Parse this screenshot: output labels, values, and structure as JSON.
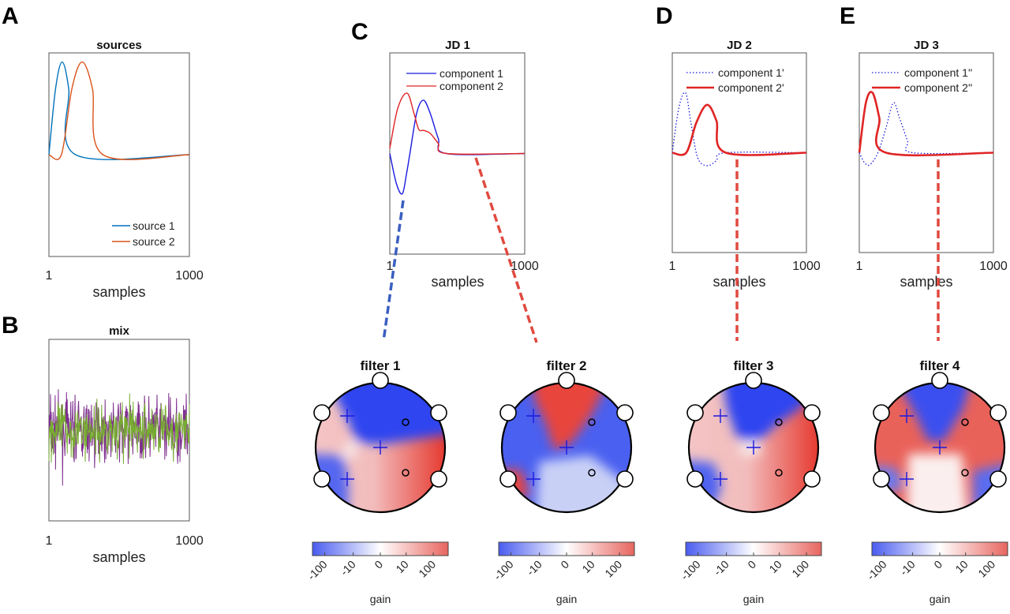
{
  "panel_labels": {
    "a": "A",
    "b": "B",
    "c": "C",
    "d": "D",
    "e": "E"
  },
  "colors": {
    "source1": "#0072BD",
    "source2": "#D95319",
    "mix1": "#7E2F8E",
    "mix2": "#77AC30",
    "comp_blue": "#1a1ae0",
    "comp_red": "#e02525",
    "cmap_neg": "#4a5cf0",
    "cmap_pos": "#e8655f"
  },
  "chart_data": [
    {
      "id": "sources",
      "type": "line",
      "title": "sources",
      "xlabel": "samples",
      "xticks": [
        "1",
        "1000"
      ],
      "xlim": [
        1,
        1000
      ],
      "ylim": [
        -1.1,
        1.1
      ],
      "legend_placement": "bottom-right",
      "series": [
        {
          "name": "source 1",
          "style": "solid",
          "color_key": "source1",
          "points": [
            [
              1,
              0
            ],
            [
              48,
              0.71
            ],
            [
              95,
              1
            ],
            [
              142,
              0.71
            ],
            [
              190,
              0
            ],
            [
              1000,
              0
            ]
          ]
        },
        {
          "name": "source 2",
          "style": "solid",
          "color_key": "source2",
          "points": [
            [
              1,
              0
            ],
            [
              90,
              0
            ],
            [
              164,
              0.71
            ],
            [
              237,
              1
            ],
            [
              311,
              0.71
            ],
            [
              385,
              0
            ],
            [
              1000,
              0
            ]
          ]
        }
      ]
    },
    {
      "id": "mix",
      "type": "line",
      "title": "mix",
      "xlabel": "samples",
      "xticks": [
        "1",
        "1000"
      ],
      "xlim": [
        1,
        1000
      ],
      "ylim": [
        -1,
        1
      ],
      "series": [
        {
          "color_key": "mix1",
          "noise_std": 0.3
        },
        {
          "color_key": "mix2",
          "noise_std": 0.25
        }
      ]
    },
    {
      "id": "jd1",
      "type": "line",
      "title": "JD 1",
      "xlabel": "samples",
      "xticks": [
        "1",
        "1000"
      ],
      "xlim": [
        1,
        1000
      ],
      "ylim": [
        -1,
        1
      ],
      "legend_placement": "top",
      "series": [
        {
          "name": "component 1",
          "style": "solid",
          "color_key": "comp_blue",
          "points": [
            [
              1,
              0
            ],
            [
              50,
              -0.3
            ],
            [
              94,
              -0.4
            ],
            [
              125,
              -0.2
            ],
            [
              150,
              0
            ],
            [
              200,
              0.4
            ],
            [
              250,
              0.53
            ],
            [
              300,
              0.4
            ],
            [
              360,
              0.15
            ],
            [
              420,
              0
            ],
            [
              1000,
              0
            ]
          ]
        },
        {
          "name": "component 2",
          "style": "solid",
          "color_key": "comp_red",
          "points": [
            [
              1,
              0.05
            ],
            [
              60,
              0.45
            ],
            [
              129,
              0.6
            ],
            [
              180,
              0.4
            ],
            [
              215,
              0.24
            ],
            [
              250,
              0.23
            ],
            [
              300,
              0.2
            ],
            [
              360,
              0.1
            ],
            [
              420,
              0
            ],
            [
              1000,
              0
            ]
          ]
        }
      ]
    },
    {
      "id": "jd2",
      "type": "line",
      "title": "JD 2",
      "xlabel": "samples",
      "xticks": [
        "1",
        "1000"
      ],
      "xlim": [
        1,
        1000
      ],
      "ylim": [
        -1,
        1
      ],
      "legend_placement": "top",
      "series": [
        {
          "name": "component 1'",
          "style": "dotted",
          "color_key": "comp_blue",
          "points": [
            [
              1,
              0
            ],
            [
              50,
              0.45
            ],
            [
              100,
              0.6
            ],
            [
              140,
              0.3
            ],
            [
              190,
              -0.05
            ],
            [
              260,
              -0.13
            ],
            [
              330,
              -0.08
            ],
            [
              400,
              0
            ],
            [
              1000,
              0
            ]
          ]
        },
        {
          "name": "component 2'",
          "style": "thick",
          "color_key": "comp_red",
          "points": [
            [
              1,
              0
            ],
            [
              105,
              0
            ],
            [
              180,
              0.3
            ],
            [
              260,
              0.48
            ],
            [
              330,
              0.32
            ],
            [
              400,
              0
            ],
            [
              1000,
              0
            ]
          ]
        }
      ]
    },
    {
      "id": "jd3",
      "type": "line",
      "title": "JD 3",
      "xlabel": "samples",
      "xticks": [
        "1",
        "1000"
      ],
      "xlim": [
        1,
        1000
      ],
      "ylim": [
        -1,
        1
      ],
      "legend_placement": "top",
      "series": [
        {
          "name": "component 1''",
          "style": "dotted",
          "color_key": "comp_blue",
          "points": [
            [
              1,
              0
            ],
            [
              40,
              -0.1
            ],
            [
              80,
              -0.12
            ],
            [
              140,
              0
            ],
            [
              200,
              0.25
            ],
            [
              255,
              0.5
            ],
            [
              300,
              0.35
            ],
            [
              360,
              0.12
            ],
            [
              400,
              0
            ],
            [
              1000,
              0
            ]
          ]
        },
        {
          "name": "component 2''",
          "style": "thick",
          "color_key": "comp_red",
          "points": [
            [
              1,
              0
            ],
            [
              50,
              0.5
            ],
            [
              100,
              0.6
            ],
            [
              150,
              0.35
            ],
            [
              200,
              0
            ],
            [
              1000,
              0
            ]
          ]
        }
      ]
    }
  ],
  "filters": [
    {
      "title": "filter 1"
    },
    {
      "title": "filter 2"
    },
    {
      "title": "filter 3"
    },
    {
      "title": "filter 4"
    }
  ],
  "colorbar": {
    "ticks": [
      "-100",
      "-10",
      "0",
      "10",
      "100"
    ],
    "label": "gain"
  }
}
